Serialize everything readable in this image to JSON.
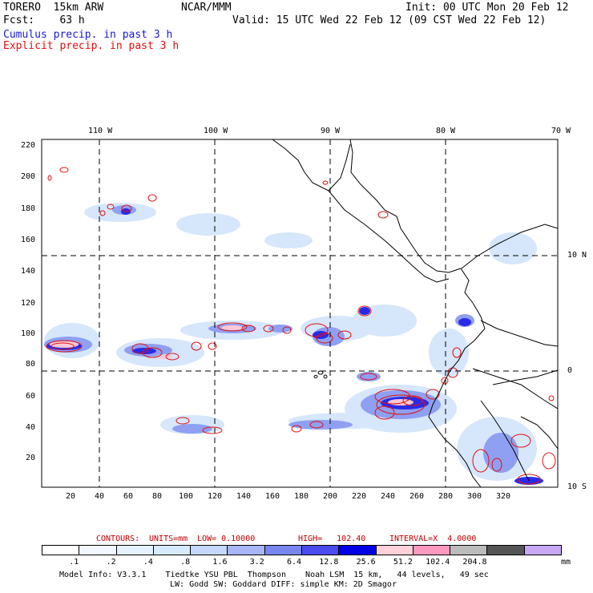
{
  "header": {
    "title_left": "TORERO  15km ARW",
    "org": "NCAR/MMM",
    "init": "Init: 00 UTC Mon 20 Feb 12",
    "fcst": "Fcst:    63 h",
    "valid": "Valid: 15 UTC Wed 22 Feb 12 (09 CST Wed 22 Feb 12)",
    "legend_cumulus": "Cumulus precip. in past 3 h",
    "legend_explicit": "Explicit precip. in past 3 h"
  },
  "axes": {
    "top_lon": [
      "110 W",
      "100 W",
      "90 W",
      "80 W",
      "70 W"
    ],
    "left_y": [
      "220",
      "200",
      "180",
      "160",
      "140",
      "120",
      "100",
      "80",
      "60",
      "40",
      "20"
    ],
    "bottom_x": [
      "20",
      "40",
      "60",
      "80",
      "100",
      "120",
      "140",
      "160",
      "180",
      "200",
      "220",
      "240",
      "260",
      "280",
      "300",
      "320"
    ],
    "right_lat": [
      "10 N",
      "0",
      "10 S"
    ]
  },
  "contour_info": {
    "contours": "CONTOURS:",
    "units": "UNITS=mm",
    "low": "LOW= 0.10000",
    "high": "HIGH=   102.40",
    "interval": "INTERVAL=X  4.0000"
  },
  "colorbar": {
    "labels": [
      ".1",
      ".2",
      ".4",
      ".8",
      "1.6",
      "3.2",
      "6.4",
      "12.8",
      "25.6",
      "51.2",
      "102.4",
      "204.8"
    ],
    "unit": "mm",
    "colors": [
      "#ffffff",
      "#f2f7ff",
      "#e6f2ff",
      "#d7ebff",
      "#c5d7fb",
      "#a9b5f4",
      "#7a86f0",
      "#4b4bf0",
      "#0000e6",
      "#ffd0d8",
      "#ff99c0",
      "#bbbbbb",
      "#555555",
      "#c8a8f5"
    ]
  },
  "footer": {
    "line1": "Model Info: V3.3.1    Tiedtke YSU PBL  Thompson    Noah LSM  15 km,   44 levels,   49 sec",
    "line2": "LW: Godd SW: Goddard DIFF: simple KM: 2D Smagor"
  }
}
